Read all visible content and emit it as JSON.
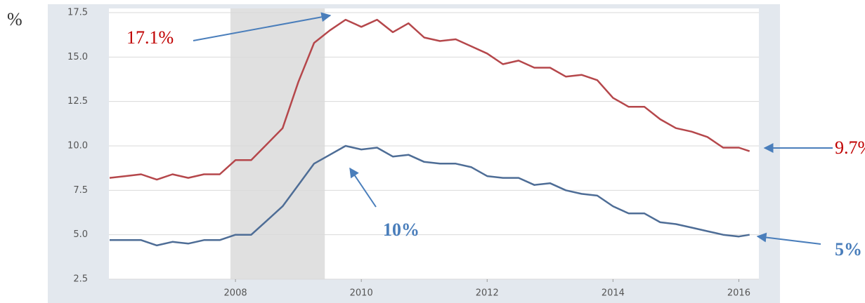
{
  "chart_data": {
    "type": "line",
    "y_label": "%",
    "x": [
      2006,
      2006.25,
      2006.5,
      2006.75,
      2007,
      2007.25,
      2007.5,
      2007.75,
      2008,
      2008.25,
      2008.5,
      2008.75,
      2009,
      2009.25,
      2009.5,
      2009.75,
      2010,
      2010.25,
      2010.5,
      2010.75,
      2011,
      2011.25,
      2011.5,
      2011.75,
      2012,
      2012.25,
      2012.5,
      2012.75,
      2013,
      2013.25,
      2013.5,
      2013.75,
      2014,
      2014.25,
      2014.5,
      2014.75,
      2015,
      2015.25,
      2015.5,
      2015.75,
      2016,
      2016.17
    ],
    "series": [
      {
        "color": "#b5474b",
        "values": [
          8.2,
          8.3,
          8.4,
          8.1,
          8.4,
          8.2,
          8.4,
          8.4,
          9.2,
          9.2,
          10.1,
          11.0,
          13.6,
          15.8,
          16.5,
          17.1,
          16.7,
          17.1,
          16.4,
          16.9,
          16.1,
          15.9,
          16.0,
          15.6,
          15.2,
          14.6,
          14.8,
          14.4,
          14.4,
          13.9,
          14.0,
          13.7,
          12.7,
          12.2,
          12.2,
          11.5,
          11.0,
          10.8,
          10.5,
          9.9,
          9.9,
          9.7
        ]
      },
      {
        "color": "#4e6d96",
        "values": [
          4.7,
          4.7,
          4.7,
          4.4,
          4.6,
          4.5,
          4.7,
          4.7,
          5.0,
          5.0,
          5.8,
          6.6,
          7.8,
          9.0,
          9.5,
          10.0,
          9.8,
          9.9,
          9.4,
          9.5,
          9.1,
          9.0,
          9.0,
          8.8,
          8.3,
          8.2,
          8.2,
          7.8,
          7.9,
          7.5,
          7.3,
          7.2,
          6.6,
          6.2,
          6.2,
          5.7,
          5.6,
          5.4,
          5.2,
          5.0,
          4.9,
          5.0
        ]
      }
    ],
    "shaded_range": [
      2007.92,
      2009.42
    ],
    "xlim": [
      2006,
      2016.33
    ],
    "xticks": [
      2008,
      2010,
      2012,
      2014,
      2016
    ],
    "ylim": [
      2.5,
      17.5
    ],
    "yticks": [
      2.5,
      {
        "value": 5,
        "label": "5.0"
      },
      7.5,
      {
        "value": 10,
        "label": "10.0"
      },
      12.5,
      {
        "value": 15,
        "label": "15.0"
      },
      17.5
    ],
    "grid": true,
    "annotations": [
      {
        "text": "17.1%",
        "color": "#c00000",
        "bold": false
      },
      {
        "text": "10%",
        "color": "#4a7ebb",
        "bold": true
      },
      {
        "text": "9.7%",
        "color": "#c00000",
        "bold": false
      },
      {
        "text": "5%",
        "color": "#4a7ebb",
        "bold": true
      }
    ]
  }
}
